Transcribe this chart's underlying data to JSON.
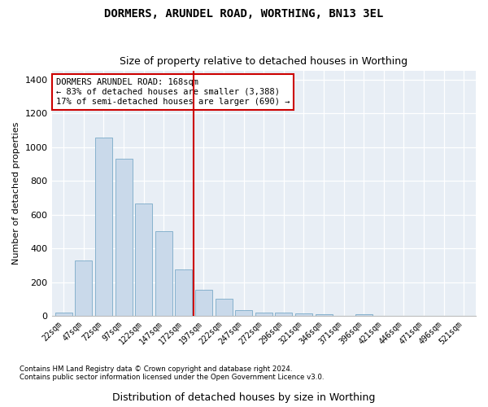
{
  "title": "DORMERS, ARUNDEL ROAD, WORTHING, BN13 3EL",
  "subtitle": "Size of property relative to detached houses in Worthing",
  "xlabel": "Distribution of detached houses by size in Worthing",
  "ylabel": "Number of detached properties",
  "bar_color": "#c9d9ea",
  "bar_edge_color": "#7aaac8",
  "background_color": "#e8eef5",
  "fig_background": "#ffffff",
  "grid_color": "#ffffff",
  "vline_color": "#cc0000",
  "annotation_text": "DORMERS ARUNDEL ROAD: 168sqm\n← 83% of detached houses are smaller (3,388)\n17% of semi-detached houses are larger (690) →",
  "annotation_box_facecolor": "#ffffff",
  "annotation_box_edgecolor": "#cc0000",
  "footnote1": "Contains HM Land Registry data © Crown copyright and database right 2024.",
  "footnote2": "Contains public sector information licensed under the Open Government Licence v3.0.",
  "categories": [
    "22sqm",
    "47sqm",
    "72sqm",
    "97sqm",
    "122sqm",
    "147sqm",
    "172sqm",
    "197sqm",
    "222sqm",
    "247sqm",
    "272sqm",
    "296sqm",
    "321sqm",
    "346sqm",
    "371sqm",
    "396sqm",
    "421sqm",
    "446sqm",
    "471sqm",
    "496sqm",
    "521sqm"
  ],
  "values": [
    18,
    330,
    1055,
    930,
    665,
    500,
    275,
    155,
    100,
    33,
    20,
    18,
    14,
    10,
    0,
    12,
    0,
    0,
    0,
    0,
    0
  ],
  "ylim": [
    0,
    1450
  ],
  "yticks": [
    0,
    200,
    400,
    600,
    800,
    1000,
    1200,
    1400
  ],
  "vline_idx": 6.5
}
